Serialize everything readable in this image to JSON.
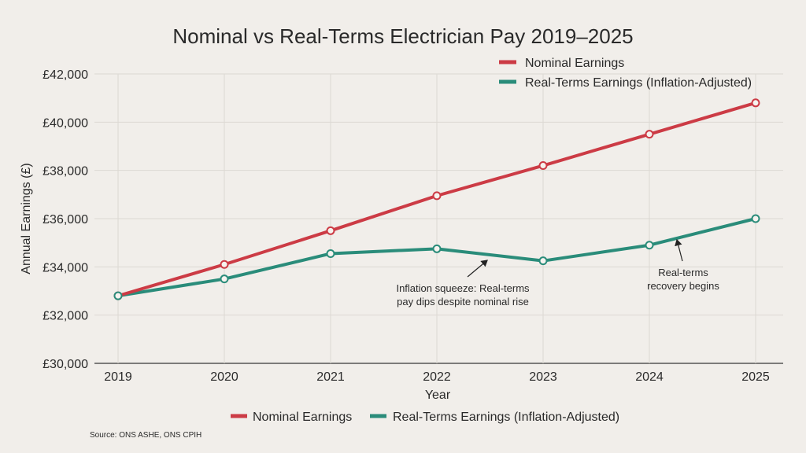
{
  "chart_data": {
    "type": "line",
    "title": "Nominal vs Real-Terms Electrician Pay 2019–2025",
    "xlabel": "Year",
    "ylabel": "Annual Earnings (£)",
    "x": [
      2019,
      2020,
      2021,
      2022,
      2023,
      2024,
      2025
    ],
    "ylim": [
      30000,
      42000
    ],
    "yticks": [
      30000,
      32000,
      34000,
      36000,
      38000,
      40000,
      42000
    ],
    "ytick_labels": [
      "£30,000",
      "£32,000",
      "£34,000",
      "£36,000",
      "£38,000",
      "£40,000",
      "£42,000"
    ],
    "xtick_labels": [
      "2019",
      "2020",
      "2021",
      "2022",
      "2023",
      "2024",
      "2025"
    ],
    "grid": true,
    "legend_placement": "top-right and bottom",
    "series": [
      {
        "name": "Nominal Earnings",
        "color": "#cc3b45",
        "values": [
          32800,
          34100,
          35500,
          36950,
          38200,
          39500,
          40800
        ]
      },
      {
        "name": "Real-Terms Earnings (Inflation-Adjusted)",
        "color": "#2a8c7a",
        "values": [
          32800,
          33500,
          34550,
          34750,
          34250,
          34900,
          36000
        ]
      }
    ],
    "annotations": [
      {
        "lines": [
          "Inflation squeeze: Real-terms",
          "pay dips despite nominal rise"
        ],
        "points_to_year": 2022.5
      },
      {
        "lines": [
          "Real-terms",
          "recovery begins"
        ],
        "points_to_year": 2024.5
      }
    ],
    "source": "Source: ONS ASHE, ONS CPIH"
  }
}
